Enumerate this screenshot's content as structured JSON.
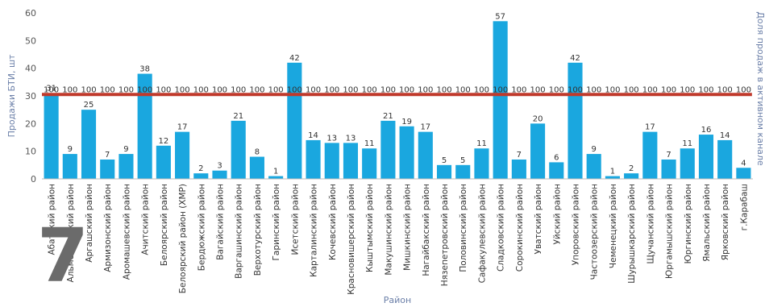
{
  "chart_data": {
    "type": "bar",
    "xlabel": "Район",
    "ylabel": "Продажи БТИ, шт",
    "y2label": "Доля продаж в активном канале",
    "ylim": [
      0,
      60
    ],
    "yticks": [
      0,
      10,
      20,
      30,
      40,
      50,
      60
    ],
    "grid": false,
    "colors": {
      "bar": "#1aa7df",
      "line": "#c0392b"
    },
    "categories": [
      "Абатский район",
      "Альменьевский район",
      "Аргашский район",
      "Армизонский район",
      "Аромашевский район",
      "Ачитский район",
      "Белоярский район",
      "Белоярский район (ХМР)",
      "Бердюжский район",
      "Вагайский район",
      "Варгашинский район",
      "Верхотурский район",
      "Гаринский район",
      "Исетский район",
      "Карталинский район",
      "Кочевский район",
      "Красновишерский район",
      "Кыштымский район",
      "Макушинский район",
      "Мишкинский район",
      "Нагайбакский район",
      "Нязепетровский район",
      "Половинский район",
      "Сафакулевский район",
      "Сладковский район",
      "Сорокинский район",
      "Уватский район",
      "Уйский район",
      "Упоровский район",
      "Частоозерский район",
      "Чеменецкий район",
      "Шурышкарский район",
      "Щучанский район",
      "Юргамышский район",
      "Юргинский район",
      "Ямальский район",
      "Ярковский район",
      "г.Карабаш"
    ],
    "series": [
      {
        "type": "bar",
        "values": [
          31,
          9,
          25,
          7,
          9,
          38,
          12,
          17,
          2,
          3,
          21,
          8,
          1,
          42,
          14,
          13,
          13,
          11,
          21,
          19,
          17,
          5,
          5,
          11,
          57,
          7,
          20,
          6,
          42,
          9,
          1,
          2,
          17,
          7,
          11,
          16,
          14,
          4
        ]
      },
      {
        "type": "line",
        "axis": "secondary",
        "values": [
          100,
          100,
          100,
          100,
          100,
          100,
          100,
          100,
          100,
          100,
          100,
          100,
          100,
          100,
          100,
          100,
          100,
          100,
          100,
          100,
          100,
          100,
          100,
          100,
          100,
          100,
          100,
          100,
          100,
          100,
          100,
          100,
          100,
          100,
          100,
          100,
          100,
          100
        ]
      }
    ]
  },
  "overlay": {
    "number": "7"
  }
}
